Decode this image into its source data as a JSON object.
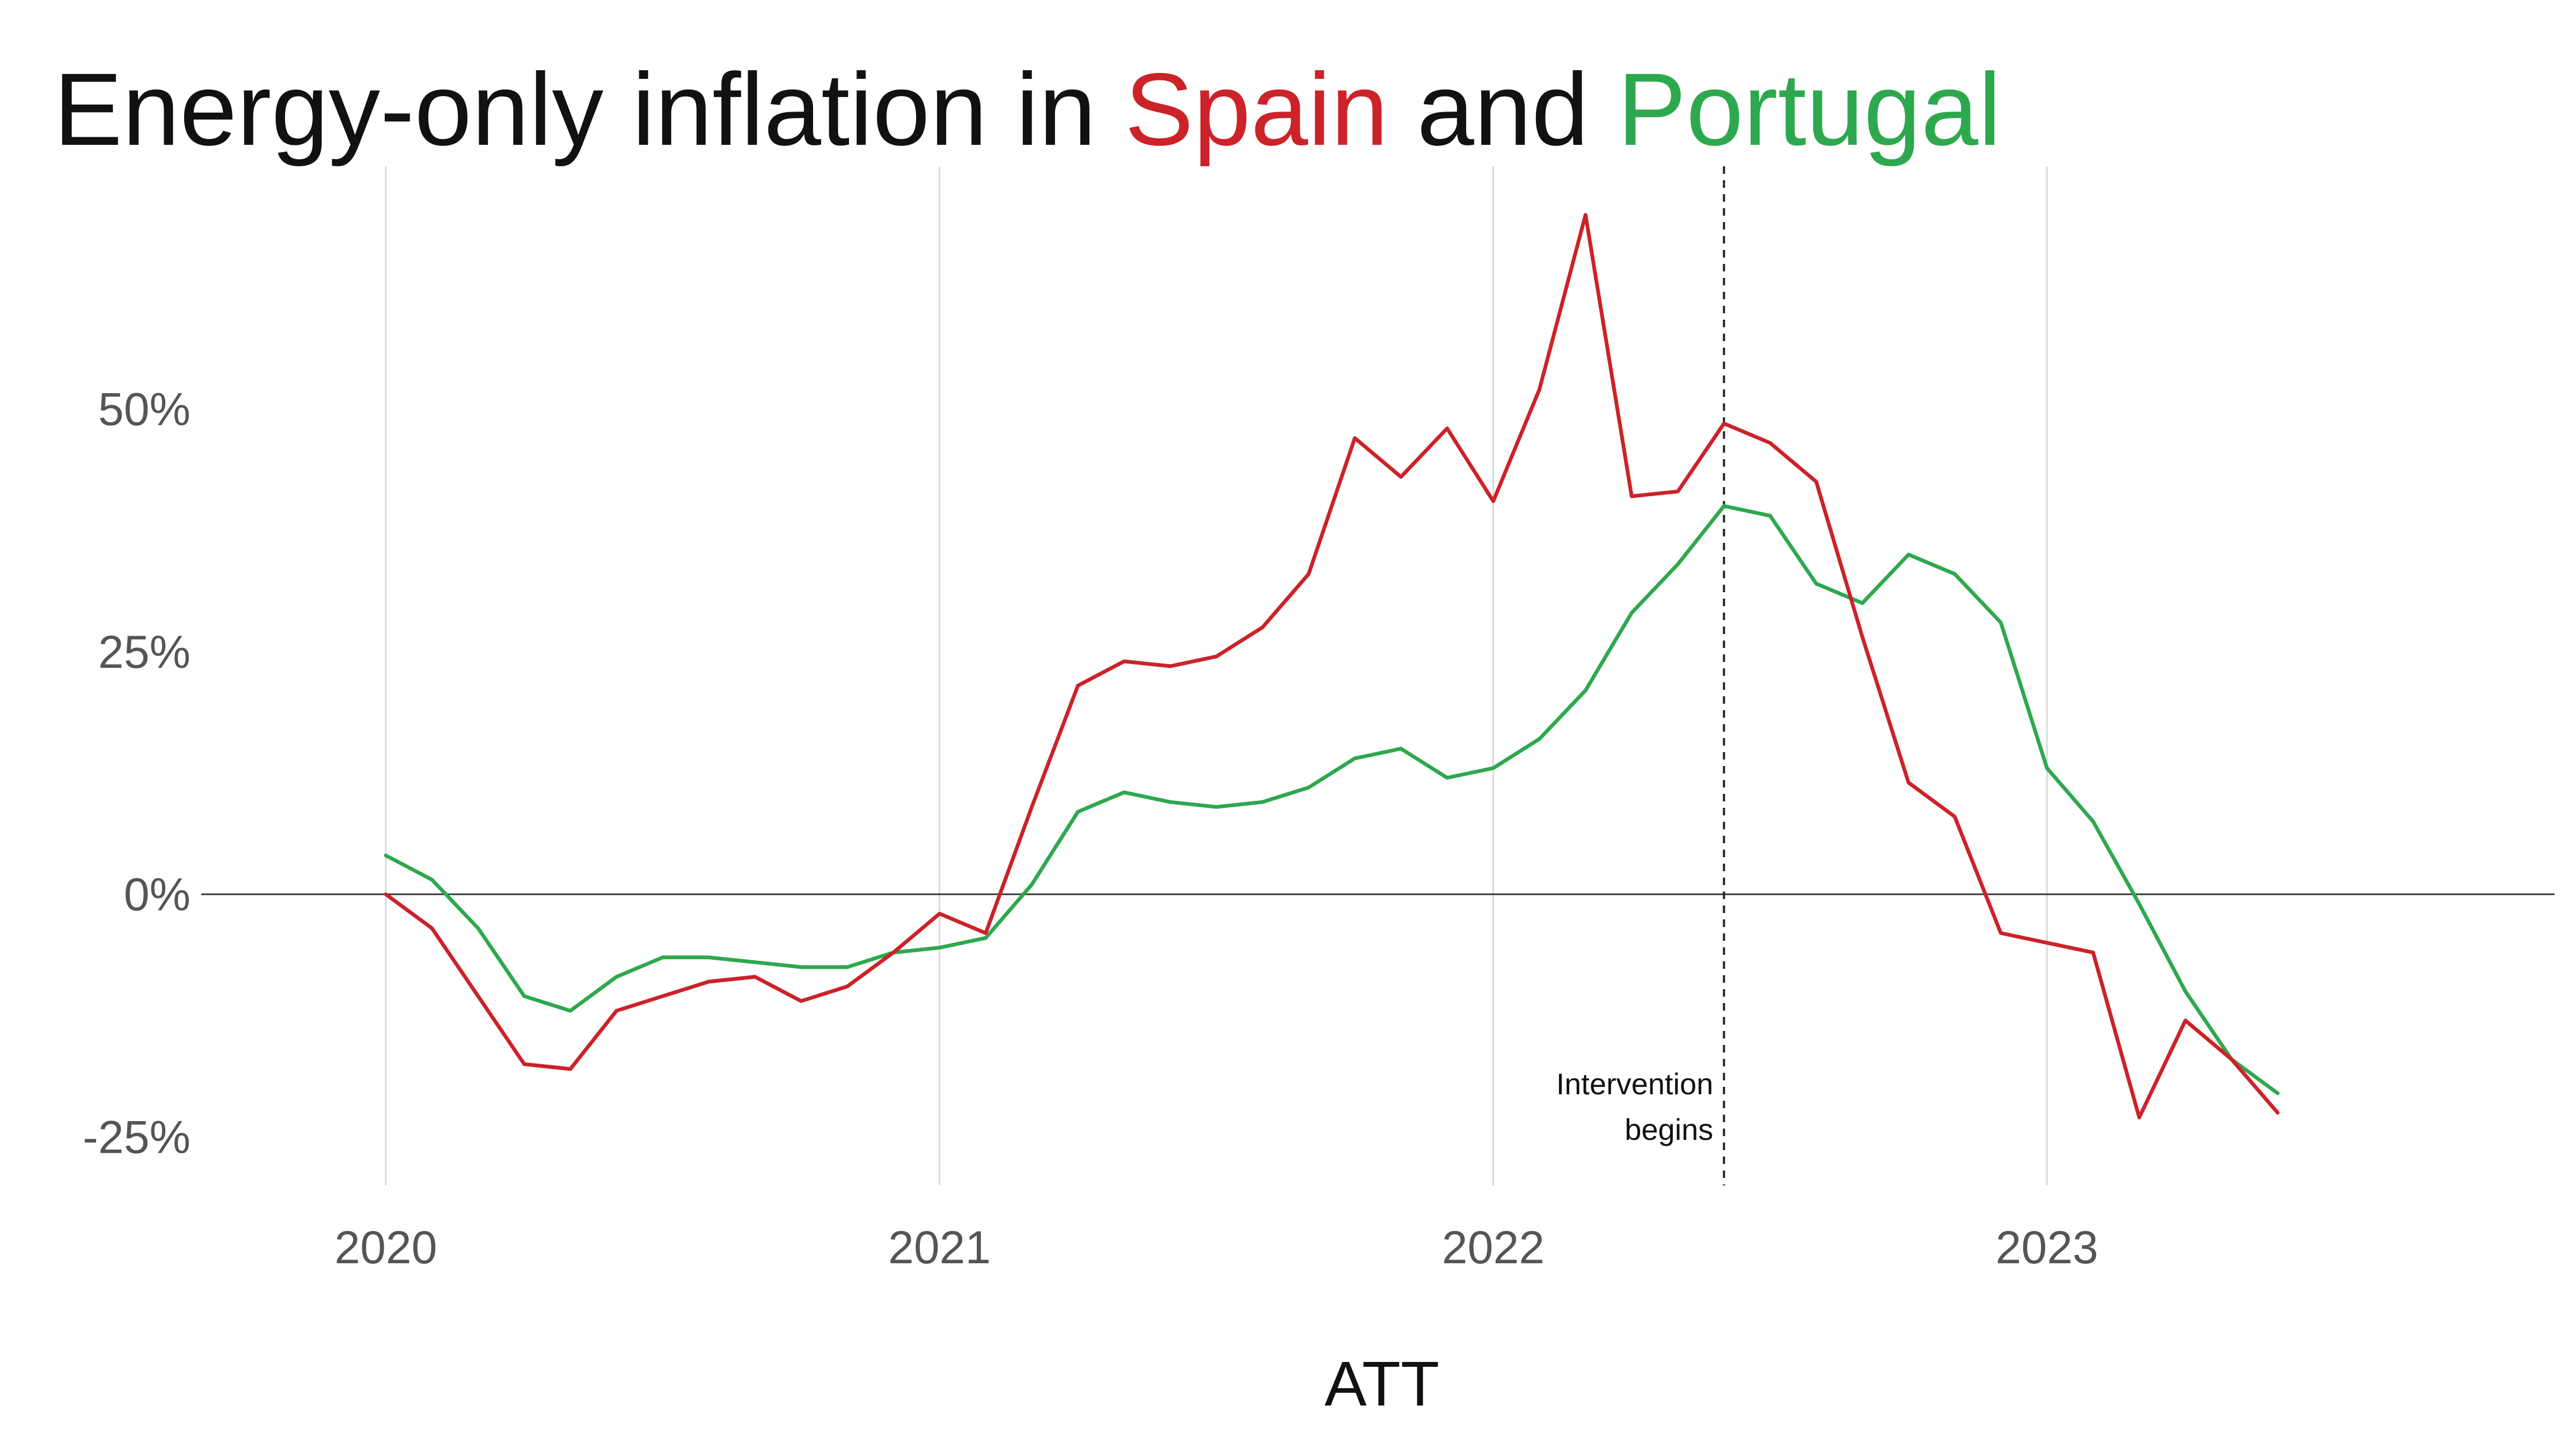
{
  "chart_data": {
    "type": "line",
    "title": {
      "prefix": "Energy-only inflation in ",
      "series1": "Spain",
      "middle": " and ",
      "series2": "Portugal"
    },
    "xlabel": "ATT",
    "ylabel": "",
    "x_start": "2020-01",
    "x_step": "month",
    "xlim": [
      "2019-09",
      "2023-12"
    ],
    "ylim": [
      -30,
      75
    ],
    "x_ticks": [
      {
        "label": "2020",
        "value": "2020-01"
      },
      {
        "label": "2021",
        "value": "2021-01"
      },
      {
        "label": "2022",
        "value": "2022-01"
      },
      {
        "label": "2023",
        "value": "2023-01"
      }
    ],
    "y_ticks": [
      {
        "label": "50%",
        "value": 50
      },
      {
        "label": "25%",
        "value": 25
      },
      {
        "label": "0%",
        "value": 0
      },
      {
        "label": "-25%",
        "value": -25
      }
    ],
    "grid": "vertical",
    "zero_line": true,
    "annotation": {
      "x": "2022-06",
      "line1": "Intervention",
      "line2": "begins"
    },
    "colors": {
      "Spain": "#cc2229",
      "Portugal": "#2ea84e",
      "grid": "#d9d9d9",
      "axis": "#333333"
    },
    "series": [
      {
        "name": "Spain",
        "values": [
          0,
          -3.5,
          -10.5,
          -17.5,
          -18,
          -12,
          -10.5,
          -9,
          -8.5,
          -11,
          -9.5,
          -6,
          -2,
          -4,
          9,
          21.5,
          24,
          23.5,
          24.5,
          27.5,
          33,
          47,
          43,
          48,
          40.5,
          52,
          70,
          41,
          41.5,
          48.5,
          46.5,
          42.5,
          26.5,
          11.5,
          8,
          -4,
          -5,
          -6,
          -23,
          -13,
          -17,
          -22.5
        ]
      },
      {
        "name": "Portugal",
        "values": [
          4,
          1.5,
          -3.5,
          -10.5,
          -12,
          -8.5,
          -6.5,
          -6.5,
          -7,
          -7.5,
          -7.5,
          -6,
          -5.5,
          -4.5,
          1,
          8.5,
          10.5,
          9.5,
          9,
          9.5,
          11,
          14,
          15,
          12,
          13,
          16,
          21,
          29,
          34,
          40,
          39,
          32,
          30,
          35,
          33,
          28,
          13,
          7.5,
          -1,
          -10,
          -17,
          -20.5
        ]
      }
    ]
  }
}
